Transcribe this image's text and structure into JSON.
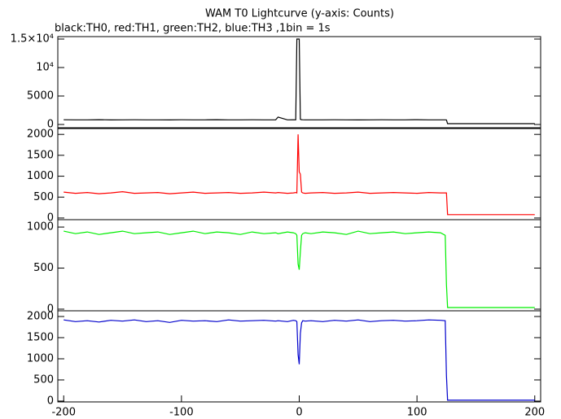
{
  "chart_data": [
    {
      "type": "line",
      "title": "WAM T0 Lightcurve (y-axis: Counts)",
      "subtitle": "black:TH0, red:TH1, green:TH2, blue:TH3 ,1bin = 1s",
      "color": "#000000",
      "x": [
        -200,
        -190,
        -180,
        -170,
        -160,
        -150,
        -140,
        -130,
        -120,
        -110,
        -100,
        -90,
        -80,
        -70,
        -60,
        -50,
        -40,
        -30,
        -20,
        -18,
        -10,
        -5,
        -3,
        -2,
        -1,
        0,
        1,
        2,
        3,
        5,
        10,
        20,
        30,
        40,
        50,
        60,
        70,
        80,
        90,
        100,
        110,
        120,
        124,
        125,
        126,
        127,
        130,
        140,
        150,
        160,
        170,
        180,
        190,
        200
      ],
      "values": [
        830,
        810,
        820,
        840,
        800,
        820,
        830,
        810,
        820,
        800,
        830,
        820,
        810,
        840,
        820,
        810,
        830,
        820,
        820,
        1300,
        820,
        830,
        820,
        15000,
        15000,
        15000,
        900,
        850,
        830,
        820,
        820,
        810,
        830,
        820,
        800,
        820,
        830,
        810,
        820,
        840,
        820,
        810,
        820,
        800,
        150,
        150,
        150,
        150,
        150,
        150,
        150,
        150,
        150,
        150
      ],
      "xlim": [
        -205,
        205
      ],
      "ylim": [
        -570,
        15430
      ],
      "yticks": [
        0,
        5000,
        {
          "value": 10000,
          "label": "10⁴"
        },
        {
          "value": 15000,
          "label": "1.5×10⁴"
        }
      ]
    },
    {
      "type": "line",
      "color": "#ff0000",
      "x": [
        -200,
        -190,
        -180,
        -170,
        -160,
        -150,
        -140,
        -130,
        -120,
        -110,
        -100,
        -90,
        -80,
        -70,
        -60,
        -50,
        -40,
        -30,
        -20,
        -18,
        -10,
        -5,
        -3,
        -2,
        -1,
        0,
        1,
        2,
        3,
        5,
        10,
        20,
        30,
        40,
        50,
        60,
        70,
        80,
        90,
        100,
        110,
        120,
        124,
        125,
        126,
        127,
        130,
        140,
        150,
        160,
        170,
        180,
        190,
        200
      ],
      "values": [
        620,
        590,
        610,
        580,
        600,
        630,
        590,
        600,
        610,
        580,
        600,
        620,
        590,
        600,
        610,
        590,
        600,
        620,
        600,
        610,
        590,
        600,
        610,
        600,
        2000,
        1100,
        1050,
        620,
        600,
        590,
        600,
        610,
        590,
        600,
        620,
        590,
        600,
        610,
        600,
        590,
        610,
        600,
        600,
        600,
        80,
        80,
        80,
        80,
        80,
        80,
        80,
        80,
        80,
        80
      ],
      "xlim": [
        -205,
        205
      ],
      "ylim": [
        -40,
        2140
      ],
      "yticks": [
        0,
        500,
        1000,
        1500,
        2000
      ]
    },
    {
      "type": "line",
      "color": "#00ee00",
      "x": [
        -200,
        -190,
        -180,
        -170,
        -160,
        -150,
        -140,
        -130,
        -120,
        -110,
        -100,
        -90,
        -80,
        -70,
        -60,
        -50,
        -40,
        -30,
        -20,
        -18,
        -10,
        -5,
        -3,
        -2,
        -1,
        0,
        1,
        2,
        3,
        5,
        10,
        20,
        30,
        40,
        50,
        60,
        70,
        80,
        90,
        100,
        110,
        120,
        124,
        125,
        126,
        127,
        130,
        140,
        150,
        160,
        170,
        180,
        190,
        200
      ],
      "values": [
        950,
        920,
        940,
        910,
        930,
        950,
        920,
        930,
        940,
        910,
        930,
        950,
        920,
        940,
        930,
        910,
        940,
        920,
        930,
        920,
        940,
        930,
        920,
        900,
        550,
        480,
        700,
        900,
        920,
        930,
        920,
        940,
        930,
        910,
        950,
        920,
        930,
        940,
        920,
        930,
        940,
        930,
        900,
        300,
        20,
        20,
        20,
        20,
        20,
        20,
        20,
        20,
        20,
        20
      ],
      "xlim": [
        -205,
        205
      ],
      "ylim": [
        -20,
        1090
      ],
      "yticks": [
        0,
        500,
        1000
      ]
    },
    {
      "type": "line",
      "color": "#0000cc",
      "x": [
        -200,
        -190,
        -180,
        -170,
        -160,
        -150,
        -140,
        -130,
        -120,
        -110,
        -100,
        -90,
        -80,
        -70,
        -60,
        -50,
        -40,
        -30,
        -20,
        -18,
        -10,
        -5,
        -3,
        -2,
        -1,
        0,
        1,
        2,
        3,
        5,
        10,
        20,
        30,
        40,
        50,
        60,
        70,
        80,
        90,
        100,
        110,
        120,
        124,
        125,
        126,
        127,
        130,
        140,
        150,
        160,
        170,
        180,
        190,
        200
      ],
      "values": [
        1920,
        1880,
        1900,
        1870,
        1910,
        1890,
        1920,
        1880,
        1900,
        1860,
        1910,
        1890,
        1900,
        1880,
        1920,
        1890,
        1900,
        1910,
        1890,
        1900,
        1880,
        1910,
        1900,
        1880,
        1100,
        870,
        1600,
        1850,
        1900,
        1890,
        1900,
        1880,
        1910,
        1890,
        1920,
        1880,
        1900,
        1910,
        1890,
        1900,
        1920,
        1910,
        1900,
        600,
        20,
        20,
        20,
        20,
        20,
        20,
        20,
        20,
        20,
        20
      ],
      "xlim": [
        -205,
        205
      ],
      "ylim": [
        -20,
        2135
      ],
      "yticks": [
        0,
        500,
        1000,
        1500,
        2000
      ],
      "xticks": [
        -200,
        -100,
        0,
        100,
        200
      ]
    }
  ]
}
